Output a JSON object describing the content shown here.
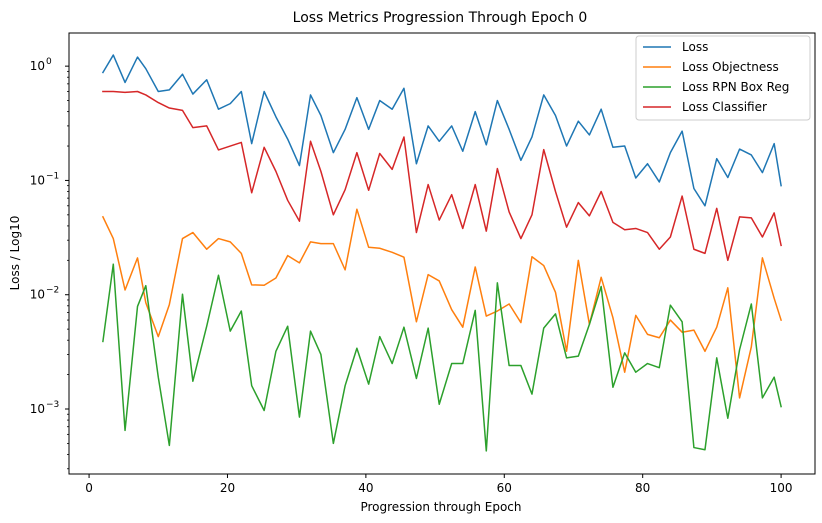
{
  "chart_data": {
    "type": "line",
    "title": "Loss Metrics Progression Through Epoch 0",
    "xlabel": "Progression through Epoch",
    "ylabel": "Loss / Log10",
    "yscale": "log",
    "xlim": [
      -2.9,
      104.9
    ],
    "ylim": [
      0.00027,
      1.95
    ],
    "xticks": [
      0,
      20,
      40,
      60,
      80,
      100
    ],
    "xtick_labels": [
      "0",
      "20",
      "40",
      "60",
      "80",
      "100"
    ],
    "yticks": [
      0.001,
      0.01,
      0.1,
      1
    ],
    "ytick_labels": [
      "10",
      "10",
      "10",
      "10"
    ],
    "ytick_exponents": [
      "−3",
      "−2",
      "−1",
      "0"
    ],
    "legend_position": "top-right",
    "grid": false,
    "x": [
      2.0,
      3.5,
      5.2,
      7.0,
      8.2,
      10.0,
      11.6,
      13.5,
      15.0,
      17.0,
      18.7,
      20.4,
      22.0,
      23.5,
      25.3,
      27.0,
      28.7,
      30.4,
      32.0,
      33.5,
      35.3,
      37.0,
      38.7,
      40.4,
      42.0,
      43.8,
      45.5,
      47.3,
      49.0,
      50.6,
      52.4,
      54.0,
      55.8,
      57.4,
      59.0,
      60.7,
      62.4,
      64.0,
      65.7,
      67.4,
      69.0,
      70.7,
      72.3,
      74.0,
      75.7,
      77.4,
      79.0,
      80.7,
      82.4,
      84.0,
      85.7,
      87.4,
      89.0,
      90.7,
      92.3,
      94.0,
      95.7,
      97.3,
      99.0,
      100.0
    ],
    "series": [
      {
        "name": "Loss",
        "color": "#1f77b4",
        "values": [
          0.88,
          1.25,
          0.72,
          1.2,
          0.95,
          0.6,
          0.62,
          0.85,
          0.57,
          0.76,
          0.42,
          0.47,
          0.6,
          0.21,
          0.6,
          0.36,
          0.23,
          0.135,
          0.56,
          0.37,
          0.175,
          0.28,
          0.53,
          0.28,
          0.5,
          0.42,
          0.64,
          0.14,
          0.3,
          0.22,
          0.3,
          0.18,
          0.4,
          0.205,
          0.5,
          0.28,
          0.15,
          0.24,
          0.56,
          0.37,
          0.2,
          0.33,
          0.25,
          0.42,
          0.195,
          0.2,
          0.105,
          0.14,
          0.097,
          0.175,
          0.27,
          0.085,
          0.06,
          0.155,
          0.106,
          0.188,
          0.167,
          0.117,
          0.21,
          0.09
        ]
      },
      {
        "name": "Loss Objectness",
        "color": "#ff7f0e",
        "values": [
          0.048,
          0.031,
          0.011,
          0.021,
          0.0085,
          0.0043,
          0.0082,
          0.031,
          0.035,
          0.025,
          0.031,
          0.029,
          0.023,
          0.0122,
          0.0121,
          0.014,
          0.022,
          0.019,
          0.029,
          0.028,
          0.028,
          0.0165,
          0.056,
          0.026,
          0.0255,
          0.0235,
          0.0213,
          0.0058,
          0.015,
          0.0132,
          0.0074,
          0.0052,
          0.0175,
          0.0065,
          0.0072,
          0.0083,
          0.0057,
          0.0215,
          0.018,
          0.0105,
          0.0032,
          0.02,
          0.0055,
          0.0142,
          0.0063,
          0.0021,
          0.0066,
          0.0045,
          0.0042,
          0.006,
          0.0047,
          0.0049,
          0.0032,
          0.0052,
          0.0115,
          0.00125,
          0.0035,
          0.021,
          0.0093,
          0.006
        ]
      },
      {
        "name": "Loss RPN Box Reg",
        "color": "#2ca02c",
        "values": [
          0.0039,
          0.0185,
          0.00065,
          0.0079,
          0.012,
          0.0019,
          0.00048,
          0.0101,
          0.00175,
          0.0053,
          0.0148,
          0.0048,
          0.0072,
          0.0016,
          0.00097,
          0.0032,
          0.0053,
          0.00085,
          0.0048,
          0.003,
          0.0005,
          0.0016,
          0.0034,
          0.00165,
          0.0043,
          0.0025,
          0.0052,
          0.00185,
          0.0051,
          0.0011,
          0.0025,
          0.0025,
          0.0073,
          0.00043,
          0.0127,
          0.0024,
          0.0024,
          0.00135,
          0.0051,
          0.0068,
          0.0028,
          0.0029,
          0.0055,
          0.0118,
          0.00155,
          0.0031,
          0.0021,
          0.0025,
          0.0023,
          0.0081,
          0.0058,
          0.00046,
          0.00044,
          0.0028,
          0.00083,
          0.0033,
          0.0083,
          0.00125,
          0.0019,
          0.00105
        ]
      },
      {
        "name": "Loss Classifier",
        "color": "#d62728",
        "values": [
          0.6,
          0.6,
          0.59,
          0.6,
          0.56,
          0.48,
          0.43,
          0.41,
          0.29,
          0.3,
          0.185,
          0.2,
          0.215,
          0.078,
          0.195,
          0.12,
          0.067,
          0.044,
          0.22,
          0.12,
          0.05,
          0.083,
          0.175,
          0.082,
          0.172,
          0.125,
          0.24,
          0.035,
          0.092,
          0.045,
          0.075,
          0.038,
          0.092,
          0.036,
          0.127,
          0.053,
          0.031,
          0.05,
          0.186,
          0.08,
          0.039,
          0.064,
          0.049,
          0.08,
          0.043,
          0.037,
          0.038,
          0.035,
          0.025,
          0.032,
          0.073,
          0.025,
          0.023,
          0.057,
          0.02,
          0.048,
          0.047,
          0.032,
          0.052,
          0.027
        ]
      }
    ]
  }
}
